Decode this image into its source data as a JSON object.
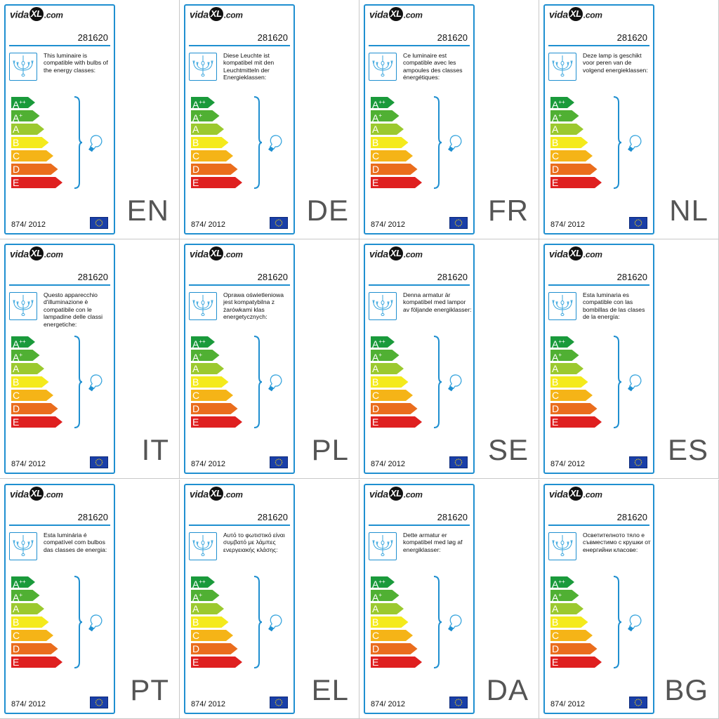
{
  "brand": {
    "prefix": "vida",
    "mark": "XL",
    "domain": ".com"
  },
  "product_code": "281620",
  "regulation": "874/ 2012",
  "energy_classes": [
    {
      "letter": "A",
      "sup": "++",
      "color": "#1a9a3b"
    },
    {
      "letter": "A",
      "sup": "+",
      "color": "#50b033"
    },
    {
      "letter": "A",
      "sup": "",
      "color": "#9bc92f"
    },
    {
      "letter": "B",
      "sup": "",
      "color": "#f4ea1c"
    },
    {
      "letter": "C",
      "sup": "",
      "color": "#f5b417"
    },
    {
      "letter": "D",
      "sup": "",
      "color": "#ea6d1d"
    },
    {
      "letter": "E",
      "sup": "",
      "color": "#df2020"
    }
  ],
  "icons": {
    "lamp": "chandelier-icon",
    "bulb": "bulb-icon",
    "flag": "eu-flag-icon"
  },
  "accent_color": "#1f8fd0",
  "labels": [
    {
      "lang": "EN",
      "text": "This luminaire is compatible with bulbs of the energy classes:"
    },
    {
      "lang": "DE",
      "text": "Diese Leuchte ist kompatibel mit den Leuchtmitteln der Energieklassen:"
    },
    {
      "lang": "FR",
      "text": "Ce luminaire est compatible avec les ampoules des classes énergétiques:"
    },
    {
      "lang": "NL",
      "text": "Deze lamp is geschikt voor peren van de volgend energieklassen:"
    },
    {
      "lang": "IT",
      "text": "Questo apparecchio d'illuminazione è compatibile con le lampadine delle classi energetiche:"
    },
    {
      "lang": "PL",
      "text": "Oprawa oświetleniowa jest kompatybilna z żarówkami klas energetycznych:"
    },
    {
      "lang": "SE",
      "text": "Denna armatur är kompatibel med lampor av följande energiklasser:"
    },
    {
      "lang": "ES",
      "text": "Esta luminaria es compatible con las bombillas de las clases de la energía:"
    },
    {
      "lang": "PT",
      "text": "Esta luminária é compatível com bulbos das classes de energia:"
    },
    {
      "lang": "EL",
      "text": "Αυτό το φωτιστικό είναι συμβατό με λάμπες ενεργειακής κλάσης:"
    },
    {
      "lang": "DA",
      "text": "Dette armatur er kompatibel med løg af energiklasser:"
    },
    {
      "lang": "BG",
      "text": "Осветителното тяло е съвместимо с крушки от енергийни класове:"
    }
  ]
}
